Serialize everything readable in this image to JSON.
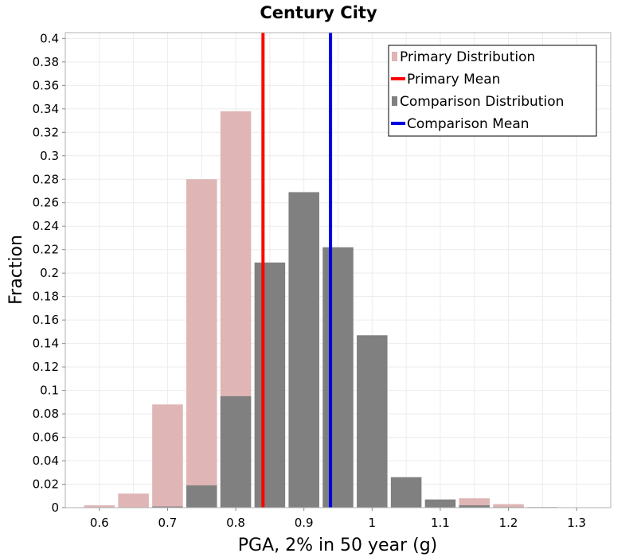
{
  "chart_data": {
    "type": "bar",
    "title": "Century City",
    "xlabel": "PGA, 2% in 50 year (g)",
    "ylabel": "Fraction",
    "xlim": [
      0.55,
      1.35
    ],
    "ylim": [
      0,
      0.405
    ],
    "bin_width": 0.05,
    "x_ticks": [
      "0.6",
      "0.7",
      "0.8",
      "0.9",
      "1",
      "1.1",
      "1.2",
      "1.3"
    ],
    "y_ticks": [
      "0",
      "0.02",
      "0.04",
      "0.06",
      "0.08",
      "0.1",
      "0.12",
      "0.14",
      "0.16",
      "0.18",
      "0.2",
      "0.22",
      "0.24",
      "0.26",
      "0.28",
      "0.3",
      "0.32",
      "0.34",
      "0.36",
      "0.38",
      "0.4"
    ],
    "grid": true,
    "legend_position": "top-right",
    "series": [
      {
        "name": "Primary Distribution",
        "color": "#dfb5b5",
        "x": [
          0.6,
          0.65,
          0.7,
          0.75,
          0.8,
          1.15,
          1.2
        ],
        "values": [
          0.002,
          0.012,
          0.088,
          0.28,
          0.338,
          0.008,
          0.003
        ]
      },
      {
        "name": "Comparison Distribution",
        "color": "#808080",
        "x": [
          0.7,
          0.75,
          0.8,
          0.85,
          0.9,
          0.95,
          1.0,
          1.05,
          1.1,
          1.15,
          1.2,
          1.25
        ],
        "values": [
          0.001,
          0.019,
          0.095,
          0.209,
          0.269,
          0.222,
          0.147,
          0.026,
          0.007,
          0.002,
          0.0005,
          0.0005
        ]
      }
    ],
    "means": [
      {
        "name": "Primary Mean",
        "value": 0.84,
        "color": "#ff0000"
      },
      {
        "name": "Comparison Mean",
        "value": 0.939,
        "color": "#0000dd"
      }
    ],
    "legend": [
      {
        "label": "Primary Distribution",
        "kind": "box",
        "color": "#dfb5b5"
      },
      {
        "label": "Primary Mean",
        "kind": "line",
        "color": "#ff0000"
      },
      {
        "label": "Comparison Distribution",
        "kind": "box",
        "color": "#808080"
      },
      {
        "label": "Comparison Mean",
        "kind": "line",
        "color": "#0000dd"
      }
    ]
  }
}
